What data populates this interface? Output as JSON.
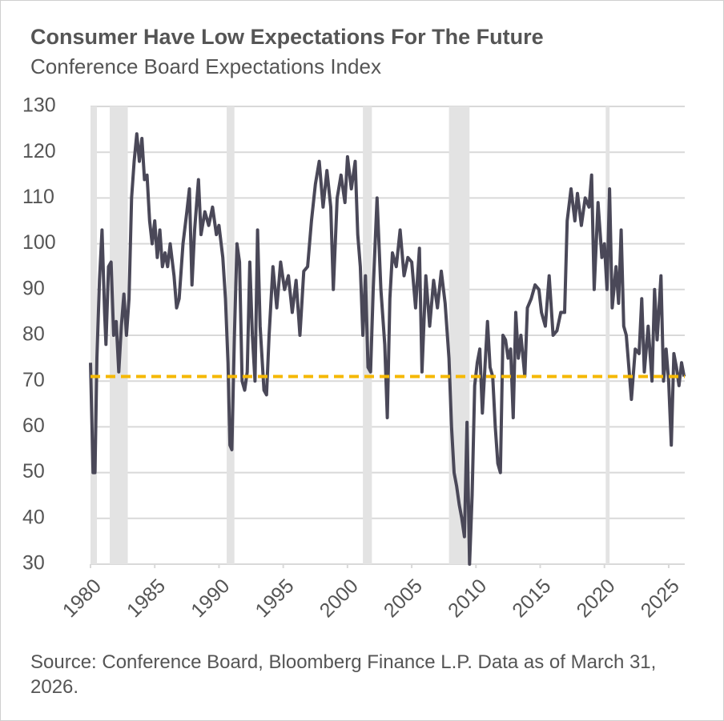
{
  "chart_data": {
    "type": "line",
    "title": "Consumer Have Low Expectations For The Future",
    "subtitle": "Conference Board Expectations Index",
    "source": "Source: Conference Board, Bloomberg Finance L.P. Data as of March 31, 2026.",
    "x": [
      1980.0,
      1980.2,
      1980.35,
      1980.5,
      1980.7,
      1980.9,
      1981.1,
      1981.2,
      1981.4,
      1981.6,
      1981.8,
      1982.0,
      1982.2,
      1982.4,
      1982.6,
      1982.8,
      1983.0,
      1983.2,
      1983.4,
      1983.6,
      1983.8,
      1984.0,
      1984.2,
      1984.4,
      1984.6,
      1984.8,
      1985.0,
      1985.2,
      1985.4,
      1985.6,
      1985.8,
      1986.0,
      1986.2,
      1986.5,
      1986.7,
      1986.9,
      1987.2,
      1987.5,
      1987.7,
      1987.9,
      1988.1,
      1988.4,
      1988.6,
      1988.9,
      1989.2,
      1989.5,
      1989.8,
      1990.0,
      1990.3,
      1990.5,
      1990.7,
      1990.85,
      1991.0,
      1991.2,
      1991.4,
      1991.6,
      1991.8,
      1992.0,
      1992.2,
      1992.4,
      1992.6,
      1992.8,
      1993.0,
      1993.2,
      1993.5,
      1993.7,
      1993.9,
      1994.2,
      1994.5,
      1994.8,
      1995.1,
      1995.4,
      1995.7,
      1996.0,
      1996.3,
      1996.6,
      1996.9,
      1997.2,
      1997.5,
      1997.8,
      1998.1,
      1998.4,
      1998.7,
      1998.9,
      1999.2,
      1999.5,
      1999.8,
      2000.0,
      2000.3,
      2000.6,
      2000.8,
      2001.0,
      2001.2,
      2001.4,
      2001.6,
      2001.8,
      2002.0,
      2002.3,
      2002.6,
      2002.9,
      2003.1,
      2003.3,
      2003.5,
      2003.8,
      2004.1,
      2004.4,
      2004.7,
      2005.0,
      2005.3,
      2005.6,
      2005.8,
      2006.1,
      2006.4,
      2006.7,
      2007.0,
      2007.3,
      2007.6,
      2007.9,
      2008.1,
      2008.3,
      2008.5,
      2008.7,
      2008.9,
      2009.1,
      2009.3,
      2009.5,
      2009.7,
      2009.9,
      2010.1,
      2010.3,
      2010.5,
      2010.7,
      2010.9,
      2011.1,
      2011.3,
      2011.5,
      2011.7,
      2011.9,
      2012.1,
      2012.3,
      2012.5,
      2012.7,
      2012.9,
      2013.1,
      2013.3,
      2013.5,
      2013.8,
      2014.0,
      2014.3,
      2014.6,
      2014.9,
      2015.1,
      2015.4,
      2015.7,
      2016.0,
      2016.3,
      2016.6,
      2016.9,
      2017.1,
      2017.4,
      2017.7,
      2017.9,
      2018.2,
      2018.5,
      2018.8,
      2019.0,
      2019.2,
      2019.5,
      2019.8,
      2020.0,
      2020.2,
      2020.4,
      2020.6,
      2020.9,
      2021.1,
      2021.3,
      2021.5,
      2021.7,
      2021.9,
      2022.1,
      2022.4,
      2022.7,
      2022.9,
      2023.1,
      2023.4,
      2023.7,
      2023.9,
      2024.1,
      2024.4,
      2024.6,
      2024.8,
      2025.0,
      2025.2,
      2025.4,
      2025.6,
      2025.8,
      2026.0,
      2026.2
    ],
    "series": [
      {
        "name": "Conference Board Expectations Index",
        "color": "#4a4858",
        "values": [
          74,
          50,
          50,
          75,
          92,
          103,
          85,
          78,
          95,
          96,
          80,
          83,
          72,
          82,
          89,
          80,
          88,
          110,
          118,
          124,
          118,
          123,
          114,
          115,
          105,
          100,
          105,
          97,
          103,
          95,
          98,
          95,
          100,
          93,
          86,
          88,
          100,
          107,
          112,
          91,
          103,
          114,
          102,
          107,
          104,
          108,
          102,
          104,
          97,
          88,
          74,
          56,
          55,
          80,
          100,
          96,
          70,
          68,
          72,
          96,
          80,
          70,
          103,
          82,
          68,
          67,
          80,
          95,
          86,
          96,
          90,
          93,
          85,
          92,
          80,
          94,
          95,
          105,
          113,
          118,
          108,
          116,
          108,
          90,
          110,
          115,
          109,
          119,
          112,
          118,
          102,
          95,
          80,
          93,
          73,
          72,
          90,
          110,
          90,
          78,
          62,
          88,
          98,
          95,
          103,
          93,
          97,
          96,
          86,
          99,
          72,
          93,
          82,
          92,
          86,
          94,
          87,
          75,
          60,
          50,
          47,
          43,
          40,
          36,
          61,
          30,
          45,
          69,
          74,
          77,
          63,
          73,
          83,
          73,
          71,
          60,
          52,
          50,
          80,
          79,
          75,
          77,
          62,
          85,
          75,
          80,
          71,
          86,
          88,
          91,
          90,
          85,
          82,
          93,
          80,
          81,
          85,
          85,
          105,
          112,
          105,
          111,
          104,
          110,
          108,
          115,
          90,
          109,
          97,
          100,
          90,
          112,
          86,
          95,
          87,
          103,
          82,
          80,
          73,
          66,
          77,
          76,
          88,
          72,
          82,
          70,
          90,
          79,
          93,
          70,
          77,
          70,
          56,
          76,
          73,
          69,
          74,
          71
        ]
      }
    ],
    "recessions": [
      [
        1980.0,
        1980.5
      ],
      [
        1981.5,
        1982.9
      ],
      [
        1990.6,
        1991.2
      ],
      [
        2001.2,
        2001.9
      ],
      [
        2007.9,
        2009.5
      ],
      [
        2020.1,
        2020.4
      ]
    ],
    "recession_color": "#e3e3e3",
    "reference_line": {
      "value": 71,
      "color": "#f5b800"
    },
    "xlim": [
      1980,
      2026.25
    ],
    "xticks": [
      1980,
      1985,
      1990,
      1995,
      2000,
      2005,
      2010,
      2015,
      2020,
      2025
    ],
    "ylim": [
      30,
      130
    ],
    "yticks": [
      30,
      40,
      50,
      60,
      70,
      80,
      90,
      100,
      110,
      120,
      130
    ],
    "grid": true
  }
}
